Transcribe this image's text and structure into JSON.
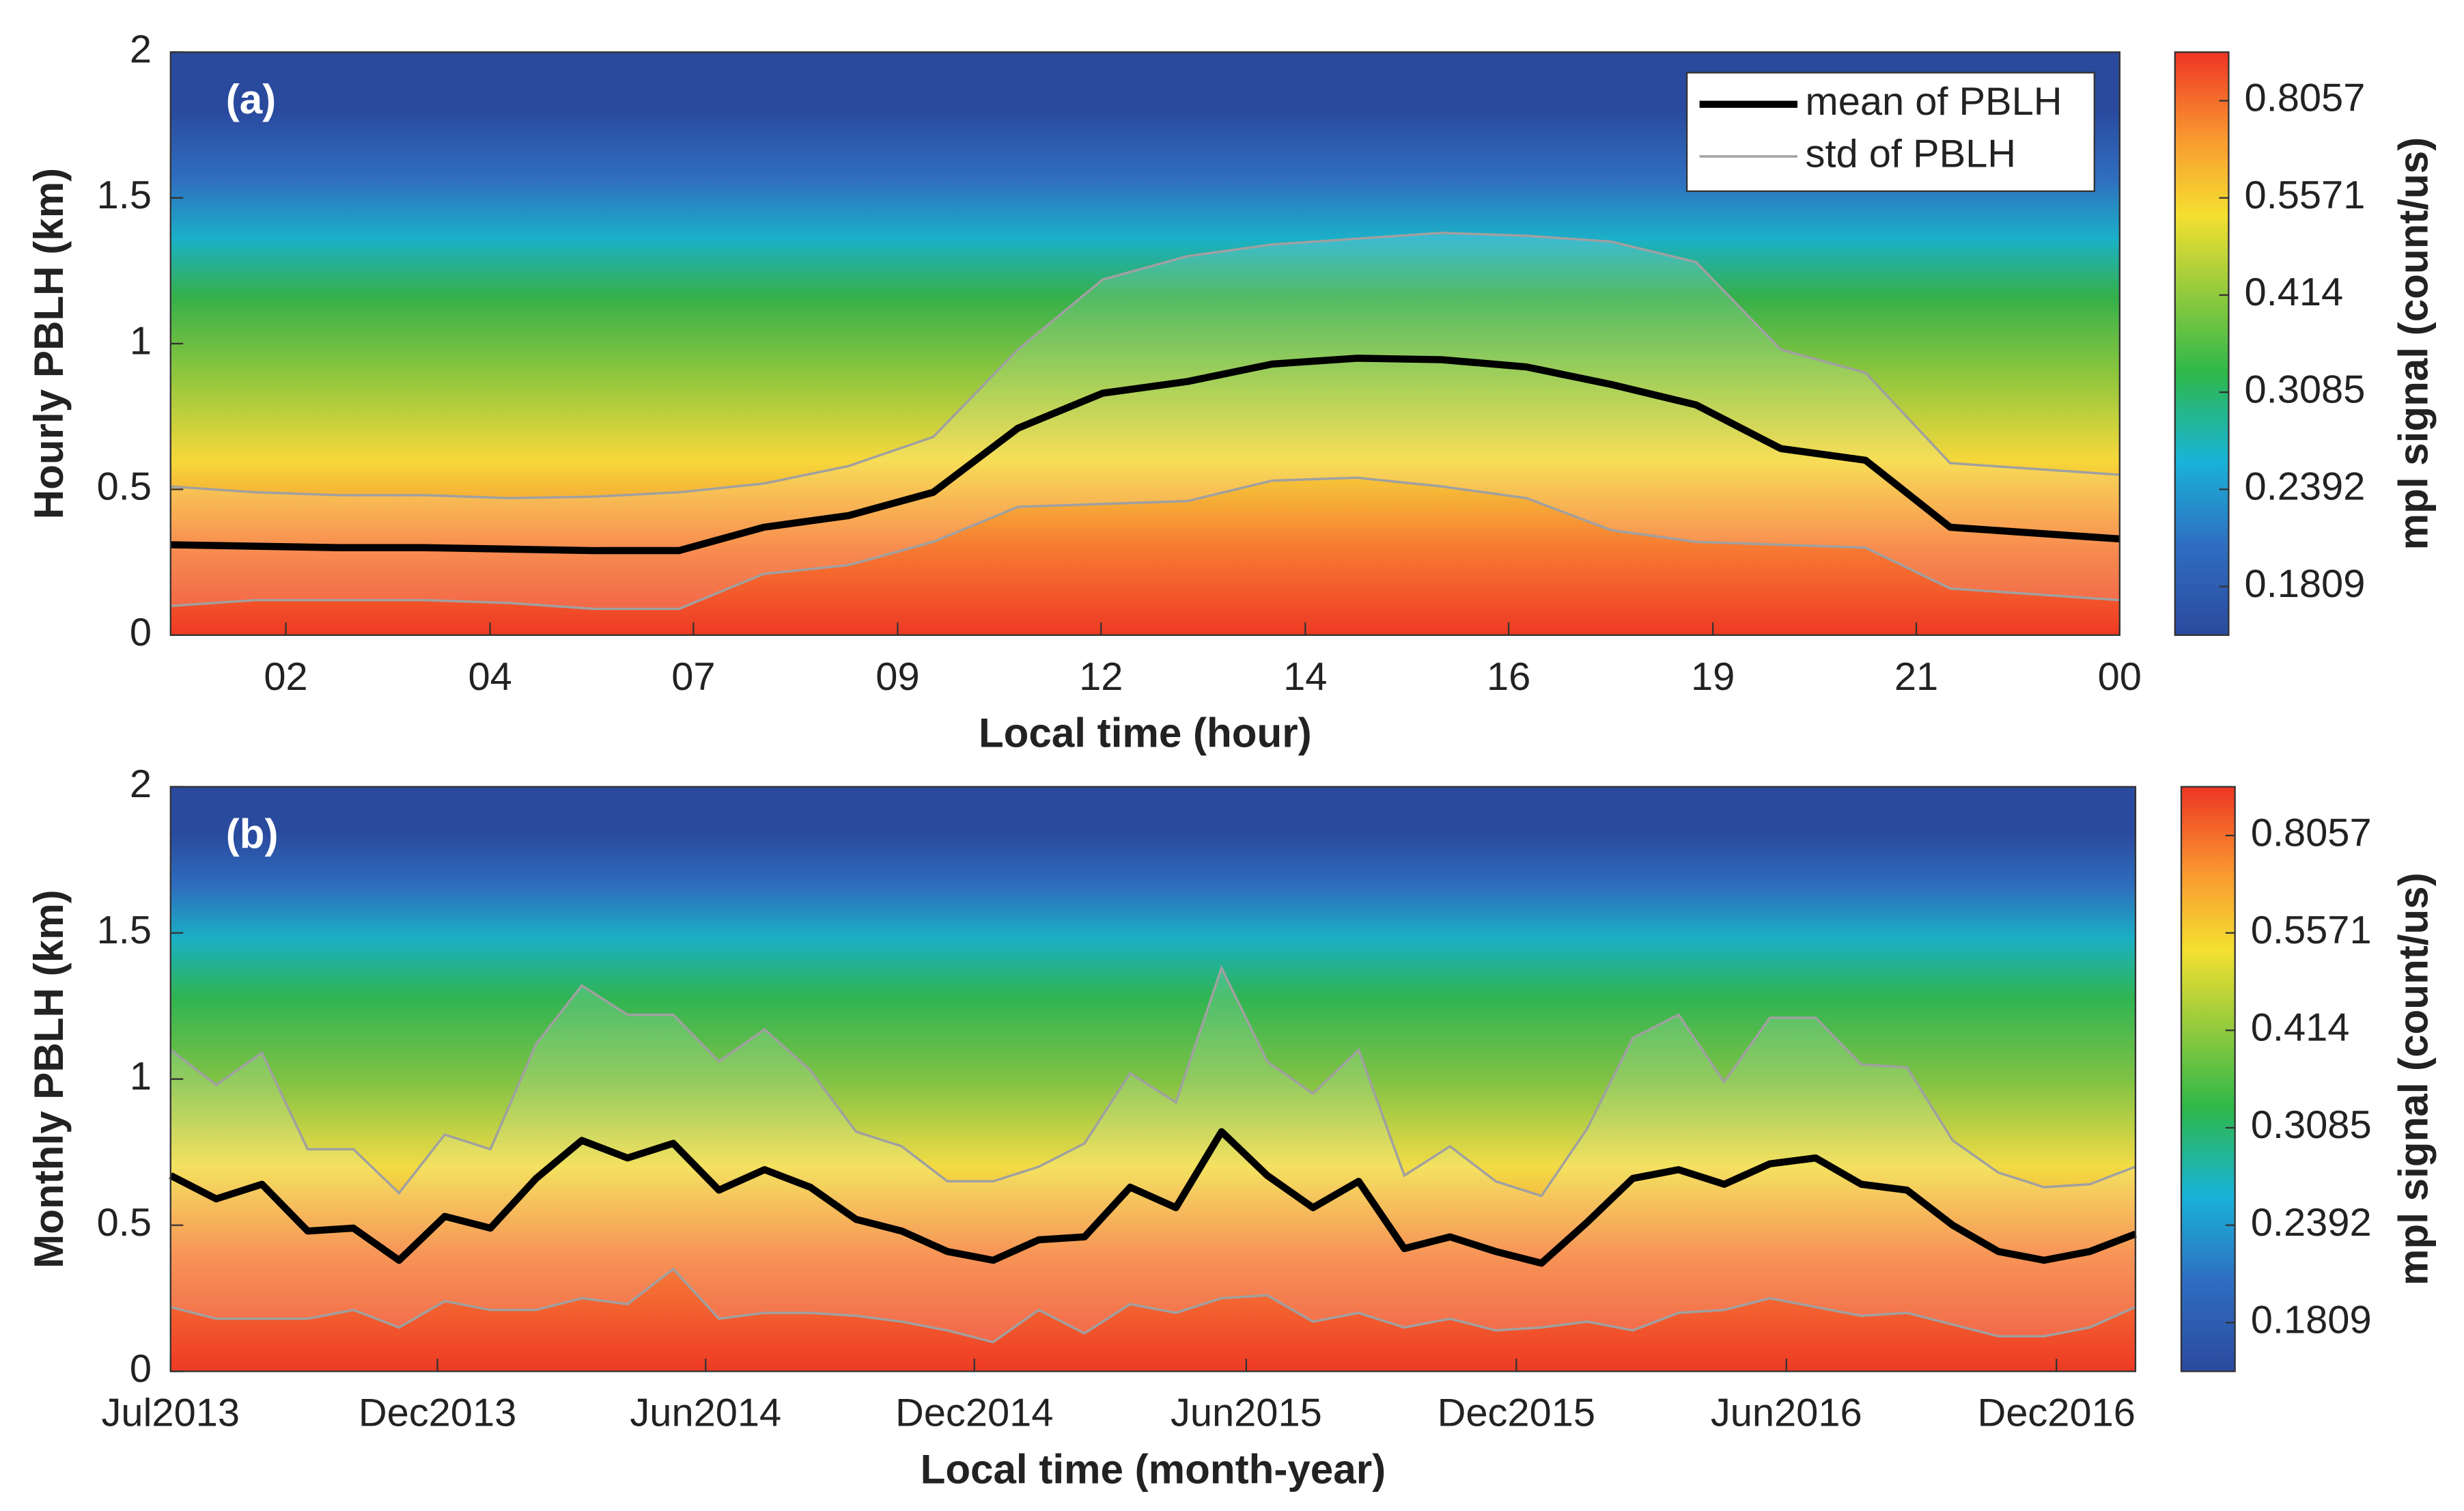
{
  "chart_data": [
    {
      "type": "line",
      "panel_label": "(a)",
      "x_label": "Local time (hour)",
      "y_label": "Hourly PBLH (km)",
      "x": [
        0,
        1,
        2,
        3,
        4,
        5,
        6,
        7,
        8,
        9,
        10,
        11,
        12,
        13,
        14,
        15,
        16,
        17,
        18,
        19,
        20,
        21,
        22,
        23
      ],
      "xlim": [
        0,
        23
      ],
      "xticks": [
        {
          "value": 1.36,
          "label": "02"
        },
        {
          "value": 3.77,
          "label": "04"
        },
        {
          "value": 6.17,
          "label": "07"
        },
        {
          "value": 8.58,
          "label": "09"
        },
        {
          "value": 10.98,
          "label": "12"
        },
        {
          "value": 13.39,
          "label": "14"
        },
        {
          "value": 15.79,
          "label": "16"
        },
        {
          "value": 18.2,
          "label": "19"
        },
        {
          "value": 20.6,
          "label": "21"
        },
        {
          "value": 23,
          "label": "00"
        }
      ],
      "ylim": [
        0,
        2
      ],
      "yticks": [
        0,
        0.5,
        1,
        1.5,
        2
      ],
      "legend": "upper right",
      "series": [
        {
          "name": "mean of PBLH",
          "color": "#000000",
          "values": [
            0.31,
            0.305,
            0.3,
            0.3,
            0.295,
            0.29,
            0.29,
            0.37,
            0.41,
            0.49,
            0.71,
            0.83,
            0.87,
            0.93,
            0.95,
            0.945,
            0.92,
            0.86,
            0.79,
            0.64,
            0.6,
            0.37,
            0.35,
            0.33
          ]
        },
        {
          "name": "std of PBLH",
          "color": "#a0a0a0",
          "upper": [
            0.51,
            0.49,
            0.48,
            0.48,
            0.47,
            0.475,
            0.49,
            0.52,
            0.58,
            0.68,
            0.98,
            1.22,
            1.3,
            1.34,
            1.36,
            1.38,
            1.37,
            1.35,
            1.28,
            0.98,
            0.9,
            0.59,
            0.57,
            0.55
          ],
          "lower": [
            0.1,
            0.12,
            0.12,
            0.12,
            0.11,
            0.09,
            0.09,
            0.21,
            0.24,
            0.32,
            0.44,
            0.45,
            0.46,
            0.53,
            0.54,
            0.51,
            0.47,
            0.36,
            0.32,
            0.31,
            0.3,
            0.16,
            0.14,
            0.12
          ]
        }
      ],
      "colorbar": {
        "label": "mpl signal (count/us)",
        "ticks": [
          0.1809,
          0.2392,
          0.3085,
          0.414,
          0.5571,
          0.8057
        ]
      }
    },
    {
      "type": "line",
      "panel_label": "(b)",
      "x_label": "Local time (month-year)",
      "y_label": "Monthly PBLH (km)",
      "x": [
        0,
        1,
        2,
        3,
        4,
        5,
        6,
        7,
        8,
        9,
        10,
        11,
        12,
        13,
        14,
        15,
        16,
        17,
        18,
        19,
        20,
        21,
        22,
        23,
        24,
        25,
        26,
        27,
        28,
        29,
        30,
        31,
        32,
        33,
        34,
        35,
        36,
        37,
        38,
        39,
        40,
        41,
        42,
        43
      ],
      "xlim": [
        0,
        43
      ],
      "xticks": [
        {
          "value": 0,
          "label": "Jul2013"
        },
        {
          "value": 5.84,
          "label": "Dec2013"
        },
        {
          "value": 11.71,
          "label": "Jun2014"
        },
        {
          "value": 17.59,
          "label": "Dec2014"
        },
        {
          "value": 23.54,
          "label": "Jun2015"
        },
        {
          "value": 29.45,
          "label": "Dec2015"
        },
        {
          "value": 35.36,
          "label": "Jun2016"
        },
        {
          "value": 41.27,
          "label": "Dec2016"
        }
      ],
      "ylim": [
        0,
        2
      ],
      "yticks": [
        0,
        0.5,
        1,
        1.5,
        2
      ],
      "series": [
        {
          "color": "#000000",
          "values": [
            0.67,
            0.59,
            0.64,
            0.48,
            0.49,
            0.38,
            0.53,
            0.49,
            0.66,
            0.79,
            0.73,
            0.78,
            0.62,
            0.69,
            0.63,
            0.52,
            0.48,
            0.41,
            0.38,
            0.45,
            0.46,
            0.63,
            0.56,
            0.82,
            0.67,
            0.56,
            0.65,
            0.42,
            0.46,
            0.41,
            0.37,
            0.51,
            0.66,
            0.69,
            0.64,
            0.71,
            0.73,
            0.64,
            0.62,
            0.5,
            0.41,
            0.38,
            0.41,
            0.47
          ]
        },
        {
          "color": "#a0a0a0",
          "upper": [
            1.1,
            0.98,
            1.09,
            0.76,
            0.76,
            0.61,
            0.81,
            0.76,
            1.12,
            1.32,
            1.22,
            1.22,
            1.06,
            1.17,
            1.03,
            0.82,
            0.77,
            0.65,
            0.65,
            0.7,
            0.78,
            1.02,
            0.92,
            1.38,
            1.06,
            0.95,
            1.1,
            0.67,
            0.77,
            0.65,
            0.6,
            0.83,
            1.14,
            1.22,
            0.99,
            1.21,
            1.21,
            1.05,
            1.04,
            0.79,
            0.68,
            0.63,
            0.64,
            0.7
          ],
          "lower": [
            0.22,
            0.18,
            0.18,
            0.18,
            0.21,
            0.15,
            0.24,
            0.21,
            0.21,
            0.25,
            0.23,
            0.35,
            0.18,
            0.2,
            0.2,
            0.19,
            0.17,
            0.14,
            0.1,
            0.21,
            0.13,
            0.23,
            0.2,
            0.25,
            0.26,
            0.17,
            0.2,
            0.15,
            0.18,
            0.14,
            0.15,
            0.17,
            0.14,
            0.2,
            0.21,
            0.25,
            0.22,
            0.19,
            0.2,
            0.16,
            0.12,
            0.12,
            0.15,
            0.22
          ]
        }
      ],
      "colorbar": {
        "label": "mpl signal (count/us)",
        "ticks": [
          0.1809,
          0.2392,
          0.3085,
          0.414,
          0.5571,
          0.8057
        ]
      }
    }
  ]
}
